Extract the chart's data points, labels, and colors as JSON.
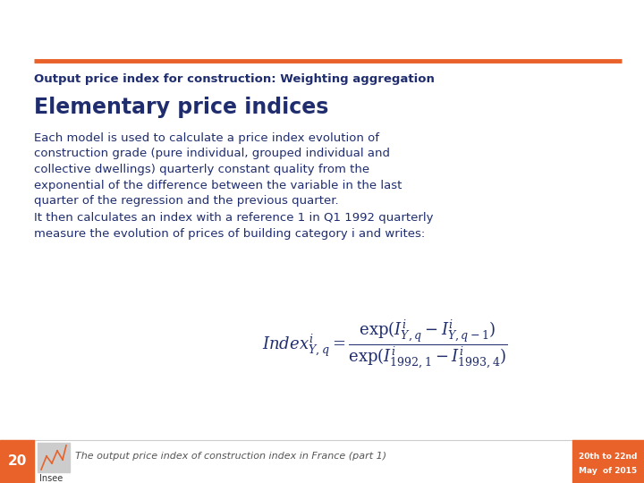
{
  "bg_color": "#ffffff",
  "orange_line_color": "#E8622A",
  "dark_blue": "#1F2D6E",
  "body_color": "#1F2D6E",
  "slide_title": "Output price index for construction: Weighting aggregation",
  "section_title": "Elementary price indices",
  "body_lines_p1": [
    "Each model is used to calculate a price index evolution of",
    "construction grade (pure individual, grouped individual and",
    "collective dwellings) quarterly constant quality from the",
    "exponential of the difference between the variable in the last",
    "quarter of the regression and the previous quarter."
  ],
  "body_lines_p2": [
    "It then calculates an index with a reference 1 in Q1 1992 quarterly",
    "measure the evolution of prices of building category i and writes:"
  ],
  "footer_text": "The output price index of construction index in France (part 1)",
  "page_number": "20",
  "date_text_line1": "20th to 22nd",
  "date_text_line2": "May  of 2015",
  "orange_color": "#E8622A",
  "footer_color": "#555555",
  "page_number_bg": "#E8622A",
  "page_number_fg": "#ffffff",
  "insee_text": "Insee"
}
